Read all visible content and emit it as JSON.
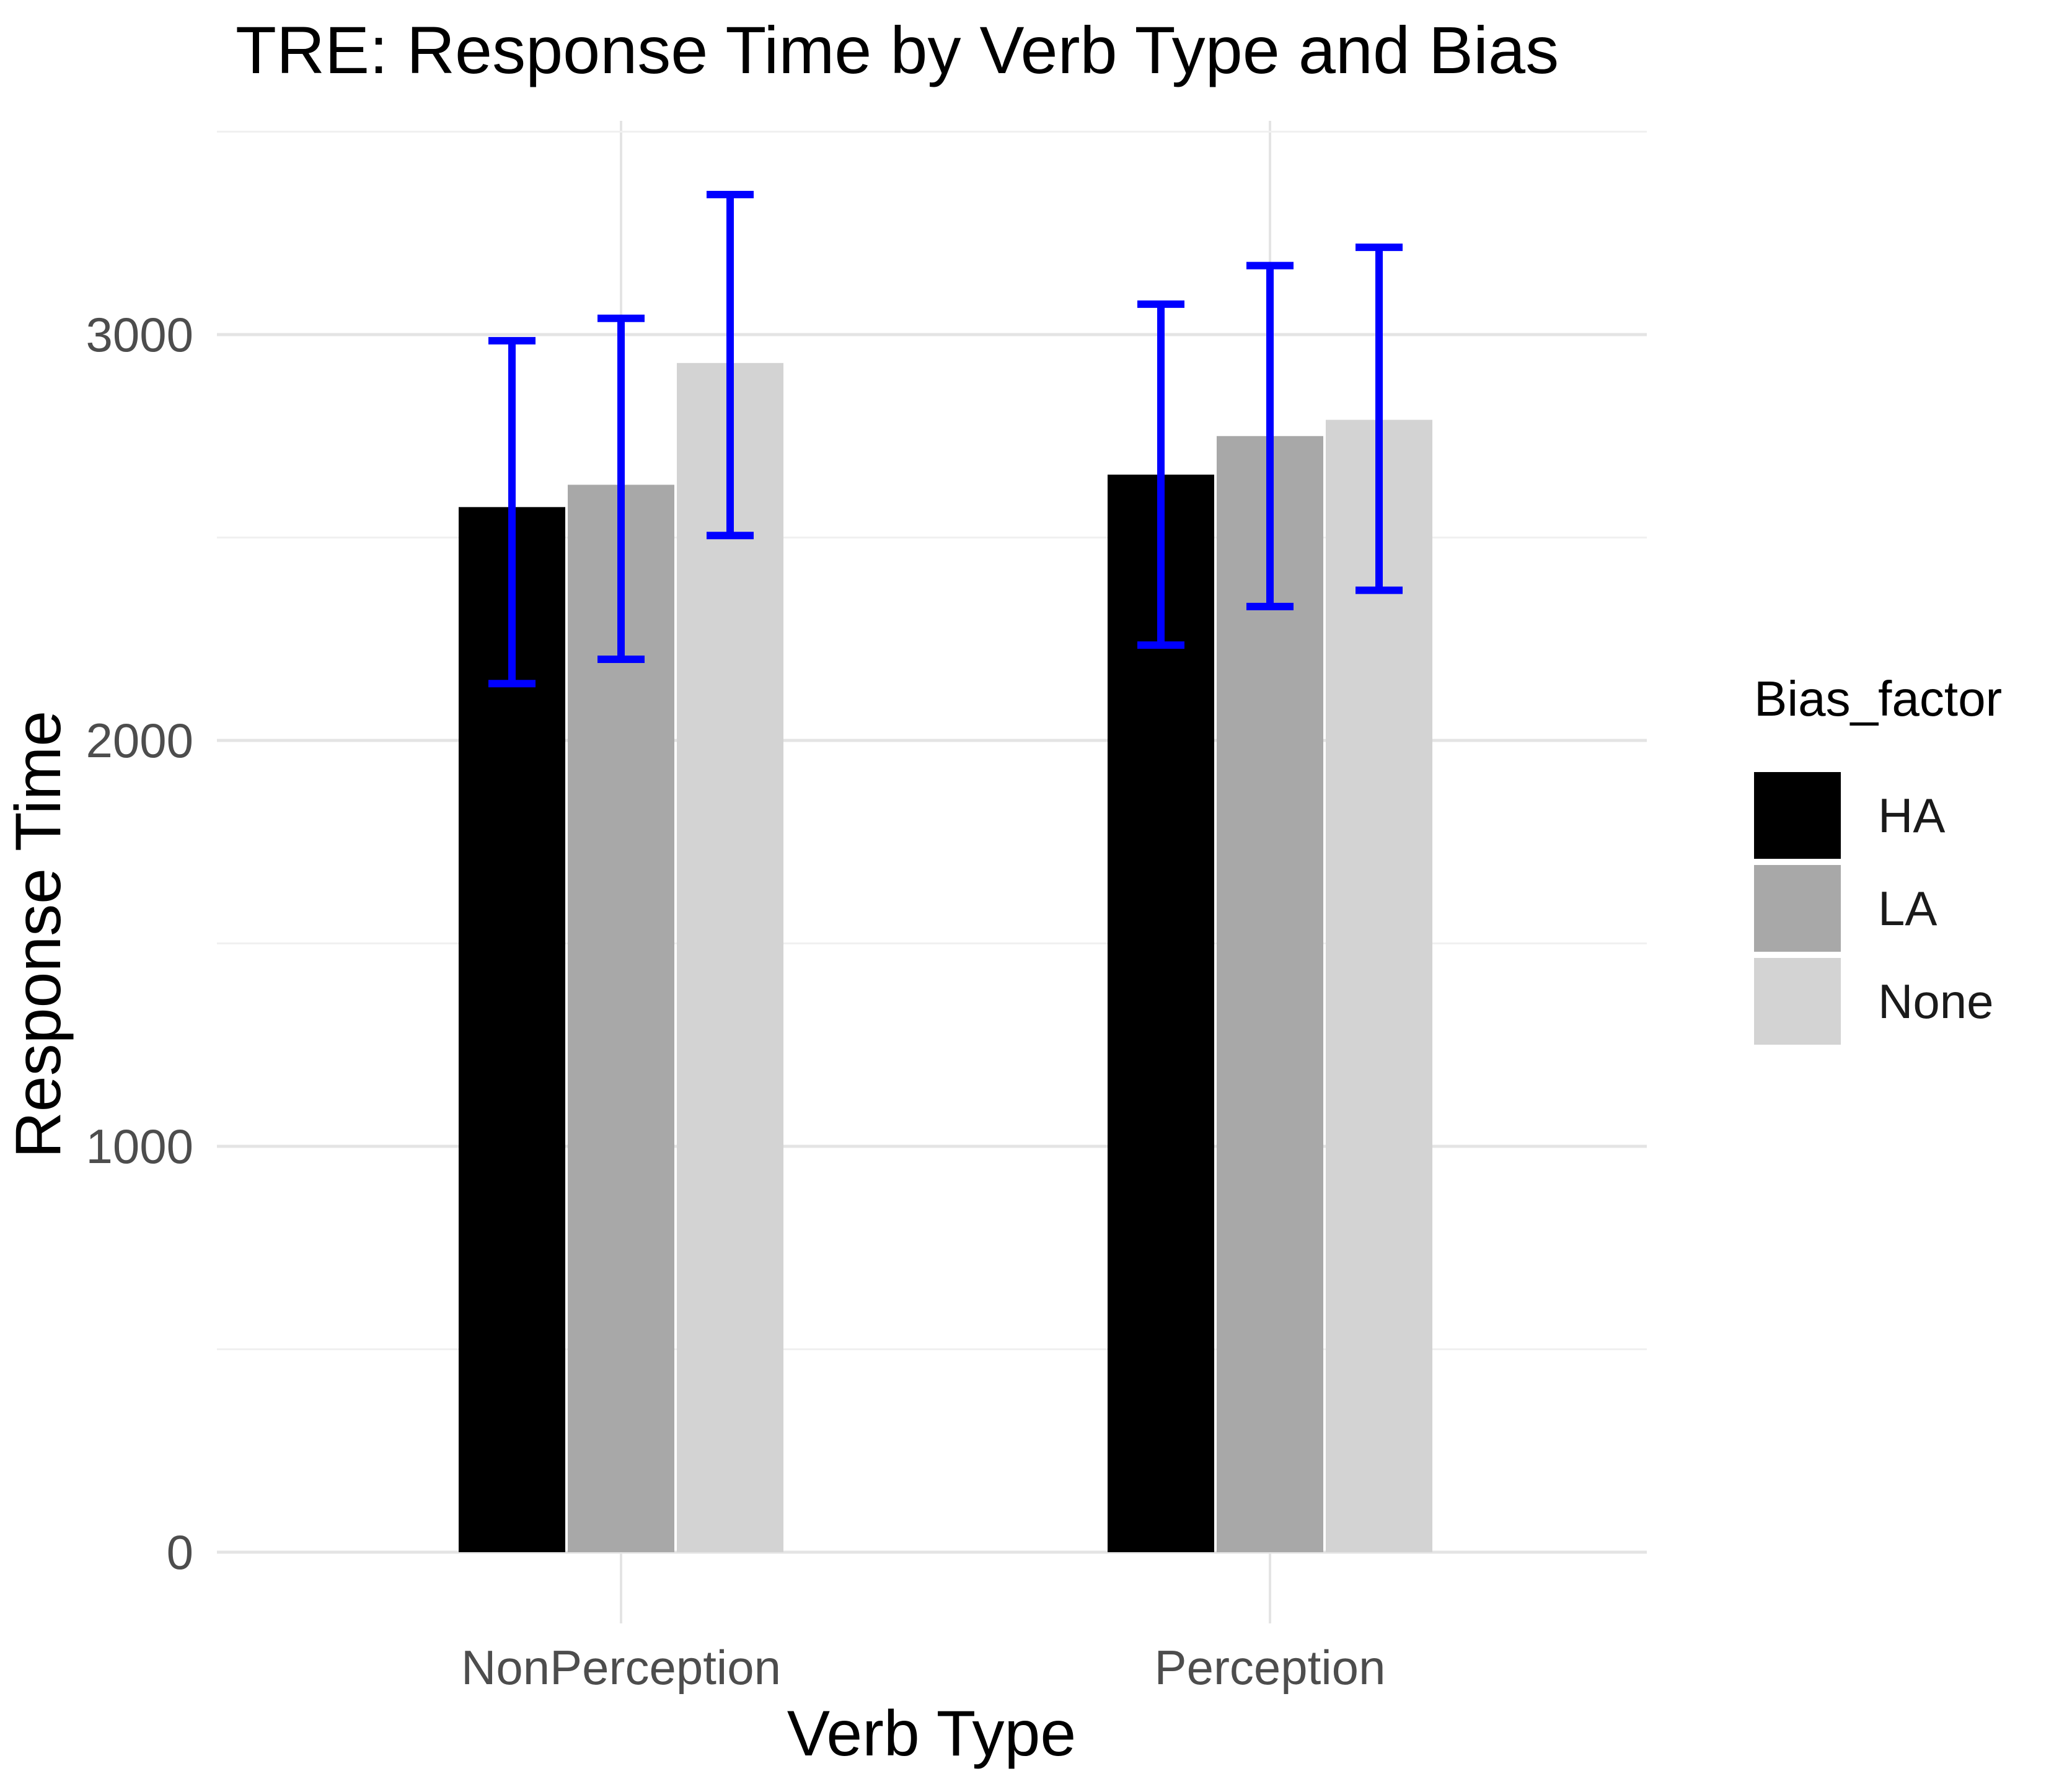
{
  "title": "TRE: Response Time by Verb Type and Bias",
  "axes": {
    "x_label": "Verb Type",
    "y_label": "Response Time",
    "x_tick_labels": [
      "NonPerception",
      "Perception"
    ],
    "y_tick_labels": [
      "0",
      "1000",
      "2000",
      "3000"
    ]
  },
  "legend": {
    "title": "Bias_factor",
    "items": [
      {
        "label": "HA",
        "color": "#000000"
      },
      {
        "label": "LA",
        "color": "#A8A8A8"
      },
      {
        "label": "None",
        "color": "#D3D3D3"
      }
    ]
  },
  "colors": {
    "background": "#FFFFFF",
    "title": "#000000",
    "axis_title": "#000000",
    "tick_label": "#4D4D4D",
    "grid_major": "#E4E4E4",
    "grid_minor": "#F0F0F0",
    "error_bar": "#0000FF"
  },
  "chart_data": {
    "type": "bar",
    "title": "TRE: Response Time by Verb Type and Bias",
    "xlabel": "Verb Type",
    "ylabel": "Response Time",
    "categories": [
      "NonPerception",
      "Perception"
    ],
    "series": [
      {
        "name": "HA",
        "color": "#000000",
        "values": [
          2575,
          2655
        ],
        "error_low": [
          2140,
          2235
        ],
        "error_high": [
          2985,
          3075
        ]
      },
      {
        "name": "LA",
        "color": "#A8A8A8",
        "values": [
          2630,
          2750
        ],
        "error_low": [
          2200,
          2330
        ],
        "error_high": [
          3040,
          3170
        ]
      },
      {
        "name": "None",
        "color": "#D3D3D3",
        "values": [
          2930,
          2790
        ],
        "error_low": [
          2505,
          2370
        ],
        "error_high": [
          3345,
          3215
        ]
      }
    ],
    "ylim": [
      0,
      3520
    ],
    "y_major_ticks": [
      0,
      1000,
      2000,
      3000
    ],
    "y_minor_ticks": [
      500,
      1500,
      2500,
      3500
    ],
    "grid": true,
    "error_bars": true,
    "error_bar_color": "#0000FF",
    "legend_position": "right",
    "legend_title": "Bias_factor"
  }
}
